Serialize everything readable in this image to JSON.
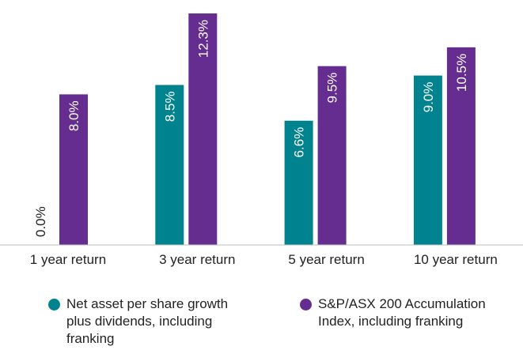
{
  "chart_data": {
    "type": "bar",
    "categories": [
      "1 year return",
      "3 year return",
      "5 year return",
      "10 year return"
    ],
    "series": [
      {
        "name": "Net asset per share growth plus dividends, including franking",
        "color": "#00838f",
        "values": [
          0.0,
          8.5,
          6.6,
          9.0
        ],
        "value_labels": [
          "0.0%",
          "8.5%",
          "6.6%",
          "9.0%"
        ]
      },
      {
        "name": "S&P/ASX 200 Accumulation Index, including franking",
        "color": "#662d91",
        "values": [
          8.0,
          12.3,
          9.5,
          10.5
        ],
        "value_labels": [
          "8.0%",
          "12.3%",
          "9.5%",
          "10.5%"
        ]
      }
    ]
  }
}
